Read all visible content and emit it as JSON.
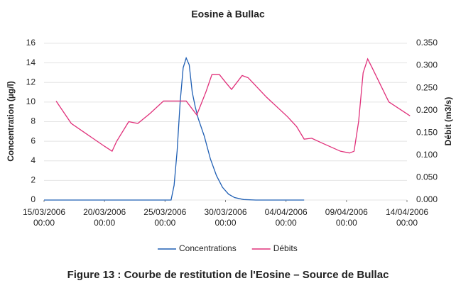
{
  "chart_data": {
    "type": "line",
    "title": "Eosine à Bullac",
    "ylabel": "Concentration (µg/l)",
    "y2label": "Débit (m3/s)",
    "xlim": [
      "2006-03-15T00:00",
      "2006-04-14T00:00"
    ],
    "xticks": [
      {
        "value": "2006-03-15T00:00",
        "label": "15/03/2006 00:00"
      },
      {
        "value": "2006-03-20T00:00",
        "label": "20/03/2006 00:00"
      },
      {
        "value": "2006-03-25T00:00",
        "label": "25/03/2006 00:00"
      },
      {
        "value": "2006-03-30T00:00",
        "label": "30/03/2006 00:00"
      },
      {
        "value": "2006-04-04T00:00",
        "label": "04/04/2006 00:00"
      },
      {
        "value": "2006-04-09T00:00",
        "label": "09/04/2006 00:00"
      },
      {
        "value": "2006-04-14T00:00",
        "label": "14/04/2006 00:00"
      }
    ],
    "ylim": [
      0,
      16
    ],
    "yticks": [
      0,
      2,
      4,
      6,
      8,
      10,
      12,
      14,
      16
    ],
    "y2lim": [
      0,
      0.35
    ],
    "y2ticks": [
      {
        "value": 0,
        "label": "0.000"
      },
      {
        "value": 0.05,
        "label": "0.050"
      },
      {
        "value": 0.1,
        "label": "0.100"
      },
      {
        "value": 0.15,
        "label": "0.150"
      },
      {
        "value": 0.2,
        "label": "0.200"
      },
      {
        "value": 0.25,
        "label": "0.250"
      },
      {
        "value": 0.3,
        "label": "0.300"
      },
      {
        "value": 0.35,
        "label": "0.350"
      }
    ],
    "grid": true,
    "legend": "bottom",
    "series": [
      {
        "name": "Concentrations",
        "color": "#1f5fb4",
        "x": [
          "2006-03-15T00:00",
          "2006-03-25T12:00",
          "2006-03-25T18:00",
          "2006-03-26T00:00",
          "2006-03-26T06:00",
          "2006-03-26T12:00",
          "2006-03-26T18:00",
          "2006-03-27T00:00",
          "2006-03-27T06:00",
          "2006-03-27T12:00",
          "2006-03-27T18:00",
          "2006-03-28T06:00",
          "2006-03-28T18:00",
          "2006-03-29T06:00",
          "2006-03-29T18:00",
          "2006-03-30T06:00",
          "2006-03-30T18:00",
          "2006-03-31T12:00",
          "2006-04-01T12:00",
          "2006-04-05T12:00"
        ],
        "values": [
          0,
          0,
          1.5,
          5,
          10,
          13.5,
          14.5,
          13.8,
          11,
          9.5,
          8.3,
          6.5,
          4.2,
          2.5,
          1.3,
          0.6,
          0.25,
          0.05,
          0,
          0
        ]
      },
      {
        "name": "Débits",
        "color": "#e0307a",
        "axis": "y2",
        "x": [
          "2006-03-16T00:00",
          "2006-03-17T06:00",
          "2006-03-20T00:00",
          "2006-03-20T15:00",
          "2006-03-21T00:00",
          "2006-03-22T00:00",
          "2006-03-22T18:00",
          "2006-03-23T18:00",
          "2006-03-24T21:00",
          "2006-03-26T18:00",
          "2006-03-27T15:00",
          "2006-03-28T09:00",
          "2006-03-28T21:00",
          "2006-03-29T12:00",
          "2006-03-30T00:00",
          "2006-03-30T12:00",
          "2006-03-31T09:00",
          "2006-03-31T21:00",
          "2006-04-02T09:00",
          "2006-04-04T03:00",
          "2006-04-04T21:00",
          "2006-04-05T12:00",
          "2006-04-06T03:00",
          "2006-04-07T00:00",
          "2006-04-08T12:00",
          "2006-04-09T06:00",
          "2006-04-09T15:00",
          "2006-04-10T00:00",
          "2006-04-10T09:00",
          "2006-04-10T18:00",
          "2006-04-11T03:00",
          "2006-04-12T12:00",
          "2006-04-14T06:00"
        ],
        "values": [
          0.221,
          0.171,
          0.12,
          0.109,
          0.131,
          0.175,
          0.171,
          0.193,
          0.221,
          0.221,
          0.19,
          0.241,
          0.28,
          0.28,
          0.263,
          0.247,
          0.278,
          0.273,
          0.23,
          0.186,
          0.164,
          0.136,
          0.138,
          0.127,
          0.109,
          0.105,
          0.109,
          0.175,
          0.284,
          0.315,
          0.295,
          0.219,
          0.188
        ]
      }
    ]
  },
  "figure_caption": "Figure 13 : Courbe de restitution de l'Eosine – Source de Bullac"
}
